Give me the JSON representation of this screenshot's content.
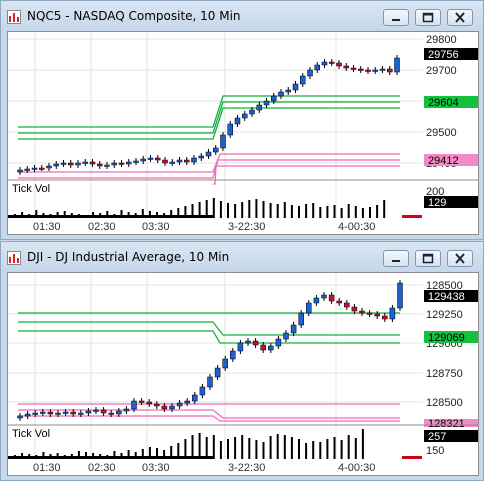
{
  "windows": [
    {
      "title": "NQC5 - NASDAQ Composite, 10 Min",
      "price_axis": [
        "29800",
        "29700",
        "29500",
        "29400",
        "29300"
      ],
      "tags": {
        "last": "29756",
        "green": "29604",
        "pink": "29412",
        "vol": "129",
        "vol_axis": "200"
      },
      "indicator_label": "Tick Vol",
      "time_axis": [
        "01:30",
        "02:30",
        "03:30",
        "3-22:30",
        "4-00:30"
      ],
      "colors": {
        "up": "#1f5fd0",
        "down": "#c8102e",
        "green": "#12b23a",
        "pink": "#f06bb5"
      }
    },
    {
      "title": "DJI - DJ Industrial Average, 10 Min",
      "price_axis": [
        "128500",
        "129250",
        "129000",
        "128750",
        "128500"
      ],
      "tags": {
        "last": "129438",
        "green": "129069",
        "pink": "128321",
        "vol": "257",
        "vol_axis": "150"
      },
      "indicator_label": "Tick Vol",
      "time_axis": [
        "01:30",
        "02:30",
        "03:30",
        "3-22:30",
        "4-00:30"
      ],
      "colors": {
        "up": "#1f5fd0",
        "down": "#c8102e",
        "green": "#12b23a",
        "pink": "#f06bb5"
      }
    }
  ],
  "window_buttons": {
    "minimize": "minimize-icon",
    "restore": "restore-icon",
    "close": "close-icon"
  }
}
